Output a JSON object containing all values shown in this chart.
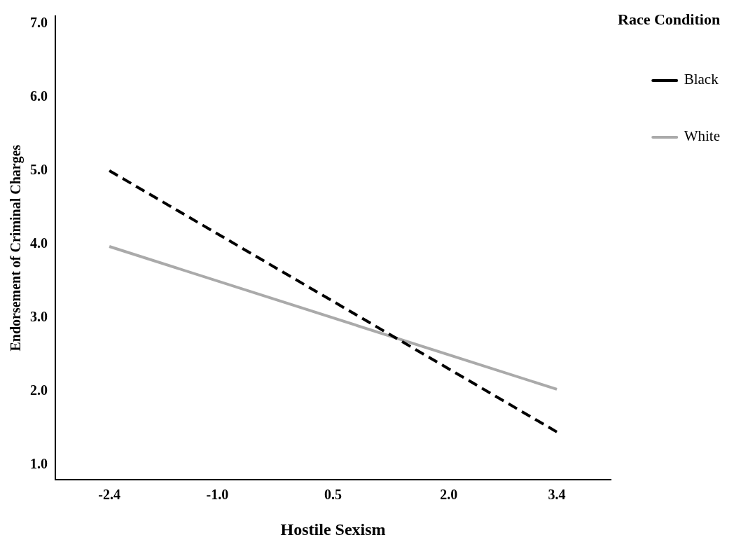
{
  "chart_data": {
    "type": "line",
    "xlabel": "Hostile Sexism",
    "ylabel": "Endorsement of Criminal Charges",
    "legend_title": "Race Condition",
    "legend": "top right",
    "grid": false,
    "marker": "none",
    "xlim": [
      -3.1,
      4.1
    ],
    "xticks": [
      {
        "value": -2.4,
        "label": "-2.4"
      },
      {
        "value": -1.0,
        "label": "-1.0"
      },
      {
        "value": 0.5,
        "label": "0.5"
      },
      {
        "value": 2.0,
        "label": "2.0"
      },
      {
        "value": 3.4,
        "label": "3.4"
      }
    ],
    "ylim": [
      0.8,
      7.1
    ],
    "yticks": [
      {
        "value": 1,
        "label": "1.0"
      },
      {
        "value": 2,
        "label": "2.0"
      },
      {
        "value": 3,
        "label": "3.0"
      },
      {
        "value": 4,
        "label": "4.0"
      },
      {
        "value": 5,
        "label": "5.0"
      },
      {
        "value": 6,
        "label": "6.0"
      },
      {
        "value": 7,
        "label": "7.0"
      }
    ],
    "x": [
      -2.4,
      3.4
    ],
    "series": [
      {
        "name": "Black",
        "color": "#000000",
        "values": [
          5.0,
          1.45
        ],
        "line_style": "dashed"
      },
      {
        "name": "White",
        "color": "#aaaaaa",
        "values": [
          3.97,
          2.03
        ],
        "line_style": "solid"
      }
    ]
  }
}
